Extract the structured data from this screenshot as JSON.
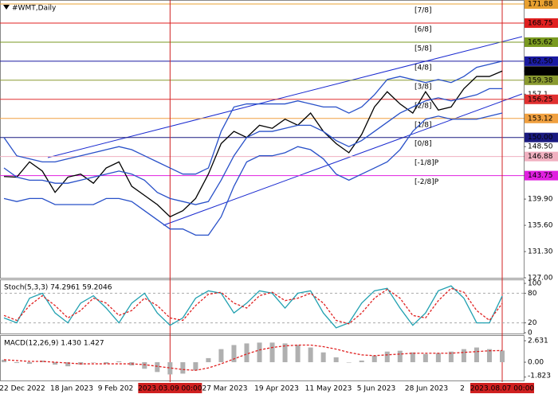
{
  "chart_data": [
    {
      "type": "line",
      "title": "#WMT,Daily",
      "ylim": [
        127,
        171.88
      ],
      "yticks": [
        171.88,
        168.75,
        165.62,
        {
          "value": 162.5,
          "label": "162.50"
        },
        160.89,
        159.38,
        157.1,
        156.25,
        153.12,
        {
          "value": 150,
          "label": "150.00"
        },
        {
          "value": 148.5,
          "label": "148.50"
        },
        146.88,
        143.75,
        {
          "value": 139.9,
          "label": "139.90"
        },
        {
          "value": 135.6,
          "label": "135.60"
        },
        {
          "value": 131.3,
          "label": "131.30"
        },
        {
          "value": 127,
          "label": "127.00"
        }
      ],
      "levels": [
        {
          "value": 171.88,
          "label": "[7/8]",
          "color": "#e8a030"
        },
        {
          "value": 168.75,
          "label": "[6/8]",
          "color": "#e02020"
        },
        {
          "value": 165.62,
          "label": "[5/8]",
          "color": "#7a9a20"
        },
        {
          "value": 162.5,
          "label": "[4/8]",
          "color": "#1a1aa0"
        },
        {
          "value": 159.38,
          "label": "[3/8]",
          "color": "#8a9a30"
        },
        {
          "value": 156.25,
          "label": "[2/8]",
          "color": "#e03030"
        },
        {
          "value": 153.12,
          "label": "[1/8]",
          "color": "#f0a040"
        },
        {
          "value": 150,
          "label": "[0/8]",
          "color": "#1a1a80"
        },
        {
          "value": 146.88,
          "label": "[-1/8]P",
          "color": "#f0b0c0"
        },
        {
          "value": 143.75,
          "label": "[-2/8]P",
          "color": "#e020e0"
        }
      ],
      "x_labels": [
        "22 Dec 2022",
        "18 Jan 2023",
        "9 Feb 202",
        "27 Mar 2023",
        "19 Apr 2023",
        "11 May 2023",
        "5 Jun 2023",
        "28 Jun 2023",
        "2"
      ],
      "markers": [
        {
          "label": "2023.03.09 00:00",
          "index": 13
        },
        {
          "label": "2023.08.07 00:00",
          "index": 39
        }
      ],
      "series": [
        {
          "color": "#000000",
          "values": [
            143.6,
            143.5,
            146,
            144.5,
            141,
            143.5,
            144,
            142.5,
            145,
            146,
            142,
            140.5,
            139,
            137,
            138,
            140,
            144,
            149,
            151,
            150,
            152,
            151.5,
            153,
            152,
            154,
            151,
            149,
            147.5,
            150.5,
            155,
            157.5,
            155.5,
            154,
            157.5,
            154.5,
            155,
            158,
            160,
            160,
            160.89
          ]
        },
        {
          "color": "#2850c8",
          "values": [
            150,
            147,
            146.5,
            146,
            146,
            146.5,
            147,
            147.5,
            148,
            148.5,
            148,
            147,
            146,
            145,
            144,
            144,
            145,
            151,
            155,
            155.5,
            155.5,
            155.5,
            155.5,
            156,
            155.5,
            155,
            155,
            154,
            155,
            157,
            159.5,
            160,
            159.5,
            159,
            159.5,
            159,
            160,
            161.5,
            162,
            162.5
          ]
        },
        {
          "color": "#2850c8",
          "values": [
            145,
            143.5,
            143,
            143,
            142.5,
            142.5,
            143,
            143.5,
            144,
            144.5,
            144,
            143,
            141,
            140,
            139.5,
            139,
            139.5,
            143,
            147,
            150,
            151,
            151,
            151.5,
            152,
            152,
            151,
            149.5,
            148.5,
            149.5,
            151,
            152.5,
            154,
            155,
            156,
            156.5,
            156,
            156.5,
            157,
            158,
            158
          ]
        },
        {
          "color": "#2850c8",
          "values": [
            140,
            139.5,
            140,
            140,
            139,
            139,
            139,
            139,
            140,
            140,
            139.5,
            138,
            136.5,
            135,
            135,
            134,
            134,
            137,
            142,
            146,
            147,
            147,
            147.5,
            148.5,
            148,
            146.5,
            144,
            143,
            144,
            145,
            146,
            148,
            151,
            153,
            153.5,
            153,
            153,
            153,
            153.5,
            154
          ]
        }
      ]
    },
    {
      "type": "stochastic",
      "title": "Stoch(5,3,3) 74.2961 59.2046",
      "ylim": [
        0,
        100
      ],
      "yticks": [
        100,
        80,
        20,
        0
      ],
      "levels": [
        80,
        20
      ],
      "series": [
        {
          "color": "#20a0b0",
          "values": [
            30,
            20,
            70,
            80,
            40,
            20,
            60,
            75,
            50,
            20,
            60,
            80,
            40,
            15,
            30,
            70,
            85,
            80,
            40,
            60,
            85,
            80,
            50,
            80,
            85,
            40,
            10,
            20,
            60,
            85,
            90,
            50,
            15,
            40,
            85,
            95,
            70,
            20,
            20,
            74.3
          ]
        },
        {
          "color": "#e02020",
          "values": [
            35,
            25,
            55,
            75,
            55,
            30,
            45,
            70,
            60,
            35,
            45,
            70,
            55,
            30,
            25,
            55,
            78,
            82,
            60,
            50,
            75,
            82,
            65,
            70,
            80,
            60,
            25,
            18,
            40,
            70,
            88,
            70,
            35,
            30,
            65,
            90,
            82,
            45,
            25,
            59.2
          ]
        }
      ]
    },
    {
      "type": "macd",
      "title": "MACD(12,26,9) 1.430 1.427",
      "ylim": [
        -2.24,
        3.22
      ],
      "yticks": [
        2.631,
        {
          "value": 0,
          "label": "0.00"
        },
        -1.823
      ],
      "series": [
        {
          "color": "#b0b0b0",
          "values": [
            0.3,
            -0.1,
            -0.2,
            0.2,
            -0.3,
            -0.5,
            -0.3,
            0,
            -0.2,
            0.1,
            -0.4,
            -0.8,
            -1.2,
            -1.5,
            -1.4,
            -1.0,
            0.5,
            1.6,
            2.1,
            2.3,
            2.4,
            2.4,
            2.3,
            2.1,
            1.8,
            1.2,
            0.6,
            0,
            0.2,
            0.8,
            1.3,
            1.4,
            1.2,
            1.0,
            1.1,
            1.3,
            1.6,
            1.8,
            1.6,
            1.43
          ]
        },
        {
          "color": "#e02020",
          "values": [
            0.3,
            0.2,
            0.1,
            0.1,
            0,
            -0.1,
            -0.2,
            -0.2,
            -0.2,
            -0.2,
            -0.2,
            -0.3,
            -0.5,
            -0.7,
            -0.9,
            -1.0,
            -0.7,
            -0.2,
            0.4,
            1.0,
            1.5,
            1.8,
            2.0,
            2.1,
            2.1,
            1.9,
            1.6,
            1.2,
            0.9,
            0.8,
            0.9,
            1.0,
            1.1,
            1.1,
            1.1,
            1.1,
            1.2,
            1.3,
            1.4,
            1.427
          ]
        }
      ]
    }
  ]
}
